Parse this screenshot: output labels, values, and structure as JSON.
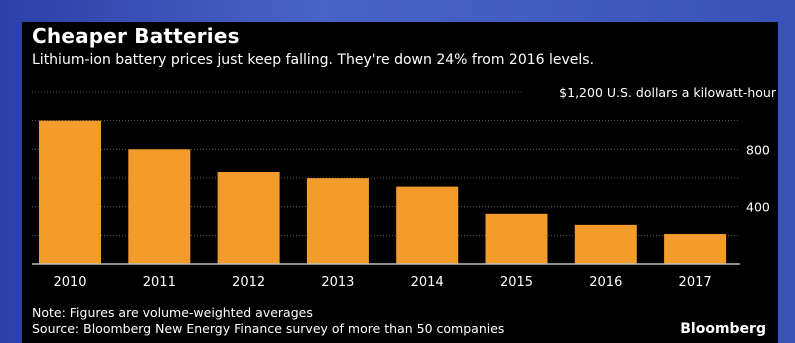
{
  "header": {
    "title": "Cheaper Batteries",
    "subtitle": "Lithium-ion battery prices just keep falling. They're down 24% from 2016 levels."
  },
  "footer": {
    "note": "Note: Figures are volume-weighted averages",
    "source": "Source: Bloomberg New Energy Finance survey of more than 50 companies",
    "brand": "Bloomberg"
  },
  "colors": {
    "bar": "#f39c2c",
    "grid": "#5a5a5a",
    "text": "#ffffff",
    "background": "#000000"
  },
  "chart_data": {
    "type": "bar",
    "title": "Cheaper Batteries",
    "subtitle": "Lithium-ion battery prices just keep falling. They're down 24% from 2016 levels.",
    "categories": [
      "2010",
      "2011",
      "2012",
      "2013",
      "2014",
      "2015",
      "2016",
      "2017"
    ],
    "values": [
      1000,
      800,
      642,
      599,
      540,
      350,
      273,
      209
    ],
    "ylim": [
      0,
      1200
    ],
    "yticks": [
      400,
      800
    ],
    "top_label": "$1,200 U.S. dollars a kilowatt-hour",
    "grid": true,
    "ylabel": "",
    "xlabel": ""
  }
}
